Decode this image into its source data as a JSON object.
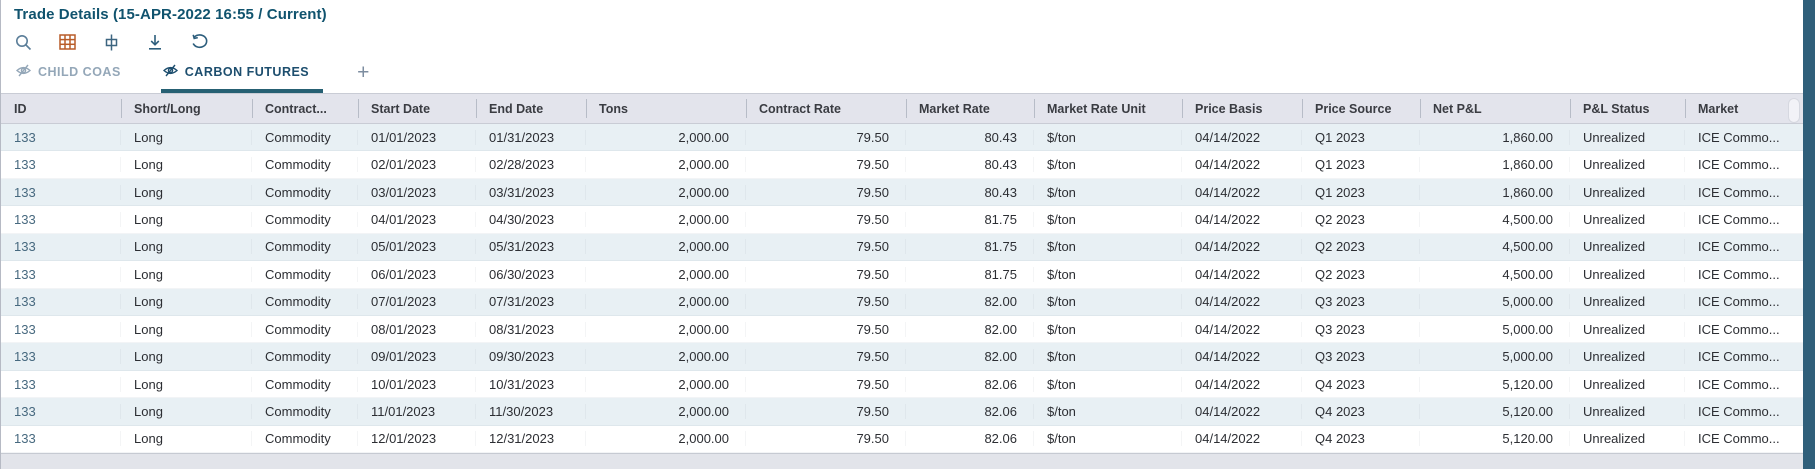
{
  "page": {
    "title": "Trade Details (15-APR-2022 16:55 / Current)"
  },
  "toolbar": {
    "icons": [
      {
        "name": "search-icon"
      },
      {
        "name": "table-grid-icon"
      },
      {
        "name": "fit-column-width-icon"
      },
      {
        "name": "download-icon"
      },
      {
        "name": "undo-icon"
      }
    ]
  },
  "tabs": {
    "items": [
      {
        "label": "CHILD COAS",
        "active": false
      },
      {
        "label": "CARBON FUTURES",
        "active": true
      }
    ],
    "add_label": "+"
  },
  "table": {
    "columns": [
      {
        "label": "ID",
        "align": "left"
      },
      {
        "label": "Short/Long",
        "align": "left"
      },
      {
        "label": "Contract...",
        "align": "left"
      },
      {
        "label": "Start Date",
        "align": "left"
      },
      {
        "label": "End Date",
        "align": "left"
      },
      {
        "label": "Tons",
        "align": "right"
      },
      {
        "label": "Contract Rate",
        "align": "right"
      },
      {
        "label": "Market Rate",
        "align": "right"
      },
      {
        "label": "Market Rate Unit",
        "align": "left"
      },
      {
        "label": "Price Basis",
        "align": "left"
      },
      {
        "label": "Price Source",
        "align": "left"
      },
      {
        "label": "Net P&L",
        "align": "right"
      },
      {
        "label": "P&L Status",
        "align": "left"
      },
      {
        "label": "Market",
        "align": "left"
      }
    ],
    "rows": [
      [
        "133",
        "Long",
        "Commodity",
        "01/01/2023",
        "01/31/2023",
        "2,000.00",
        "79.50",
        "80.43",
        "$/ton",
        "04/14/2022",
        "Q1 2023",
        "1,860.00",
        "Unrealized",
        "ICE Commo..."
      ],
      [
        "133",
        "Long",
        "Commodity",
        "02/01/2023",
        "02/28/2023",
        "2,000.00",
        "79.50",
        "80.43",
        "$/ton",
        "04/14/2022",
        "Q1 2023",
        "1,860.00",
        "Unrealized",
        "ICE Commo..."
      ],
      [
        "133",
        "Long",
        "Commodity",
        "03/01/2023",
        "03/31/2023",
        "2,000.00",
        "79.50",
        "80.43",
        "$/ton",
        "04/14/2022",
        "Q1 2023",
        "1,860.00",
        "Unrealized",
        "ICE Commo..."
      ],
      [
        "133",
        "Long",
        "Commodity",
        "04/01/2023",
        "04/30/2023",
        "2,000.00",
        "79.50",
        "81.75",
        "$/ton",
        "04/14/2022",
        "Q2 2023",
        "4,500.00",
        "Unrealized",
        "ICE Commo..."
      ],
      [
        "133",
        "Long",
        "Commodity",
        "05/01/2023",
        "05/31/2023",
        "2,000.00",
        "79.50",
        "81.75",
        "$/ton",
        "04/14/2022",
        "Q2 2023",
        "4,500.00",
        "Unrealized",
        "ICE Commo..."
      ],
      [
        "133",
        "Long",
        "Commodity",
        "06/01/2023",
        "06/30/2023",
        "2,000.00",
        "79.50",
        "81.75",
        "$/ton",
        "04/14/2022",
        "Q2 2023",
        "4,500.00",
        "Unrealized",
        "ICE Commo..."
      ],
      [
        "133",
        "Long",
        "Commodity",
        "07/01/2023",
        "07/31/2023",
        "2,000.00",
        "79.50",
        "82.00",
        "$/ton",
        "04/14/2022",
        "Q3 2023",
        "5,000.00",
        "Unrealized",
        "ICE Commo..."
      ],
      [
        "133",
        "Long",
        "Commodity",
        "08/01/2023",
        "08/31/2023",
        "2,000.00",
        "79.50",
        "82.00",
        "$/ton",
        "04/14/2022",
        "Q3 2023",
        "5,000.00",
        "Unrealized",
        "ICE Commo..."
      ],
      [
        "133",
        "Long",
        "Commodity",
        "09/01/2023",
        "09/30/2023",
        "2,000.00",
        "79.50",
        "82.00",
        "$/ton",
        "04/14/2022",
        "Q3 2023",
        "5,000.00",
        "Unrealized",
        "ICE Commo..."
      ],
      [
        "133",
        "Long",
        "Commodity",
        "10/01/2023",
        "10/31/2023",
        "2,000.00",
        "79.50",
        "82.06",
        "$/ton",
        "04/14/2022",
        "Q4 2023",
        "5,120.00",
        "Unrealized",
        "ICE Commo..."
      ],
      [
        "133",
        "Long",
        "Commodity",
        "11/01/2023",
        "11/30/2023",
        "2,000.00",
        "79.50",
        "82.06",
        "$/ton",
        "04/14/2022",
        "Q4 2023",
        "5,120.00",
        "Unrealized",
        "ICE Commo..."
      ],
      [
        "133",
        "Long",
        "Commodity",
        "12/01/2023",
        "12/31/2023",
        "2,000.00",
        "79.50",
        "82.06",
        "$/ton",
        "04/14/2022",
        "Q4 2023",
        "5,120.00",
        "Unrealized",
        "ICE Commo..."
      ]
    ]
  },
  "colors": {
    "title_text": "#10536e",
    "active_tab_underline": "#266073",
    "inactive_tab_text": "#94a7b8",
    "active_tab_text": "#1d4e6e",
    "orange_icon": "#b85c28",
    "blue_icon": "#2c5d7c",
    "header_bg": "#e3e4ec",
    "alt_row_bg": "#e8f0f4",
    "id_link_text": "#47697f",
    "edge_strip": "#2f5f7a"
  }
}
